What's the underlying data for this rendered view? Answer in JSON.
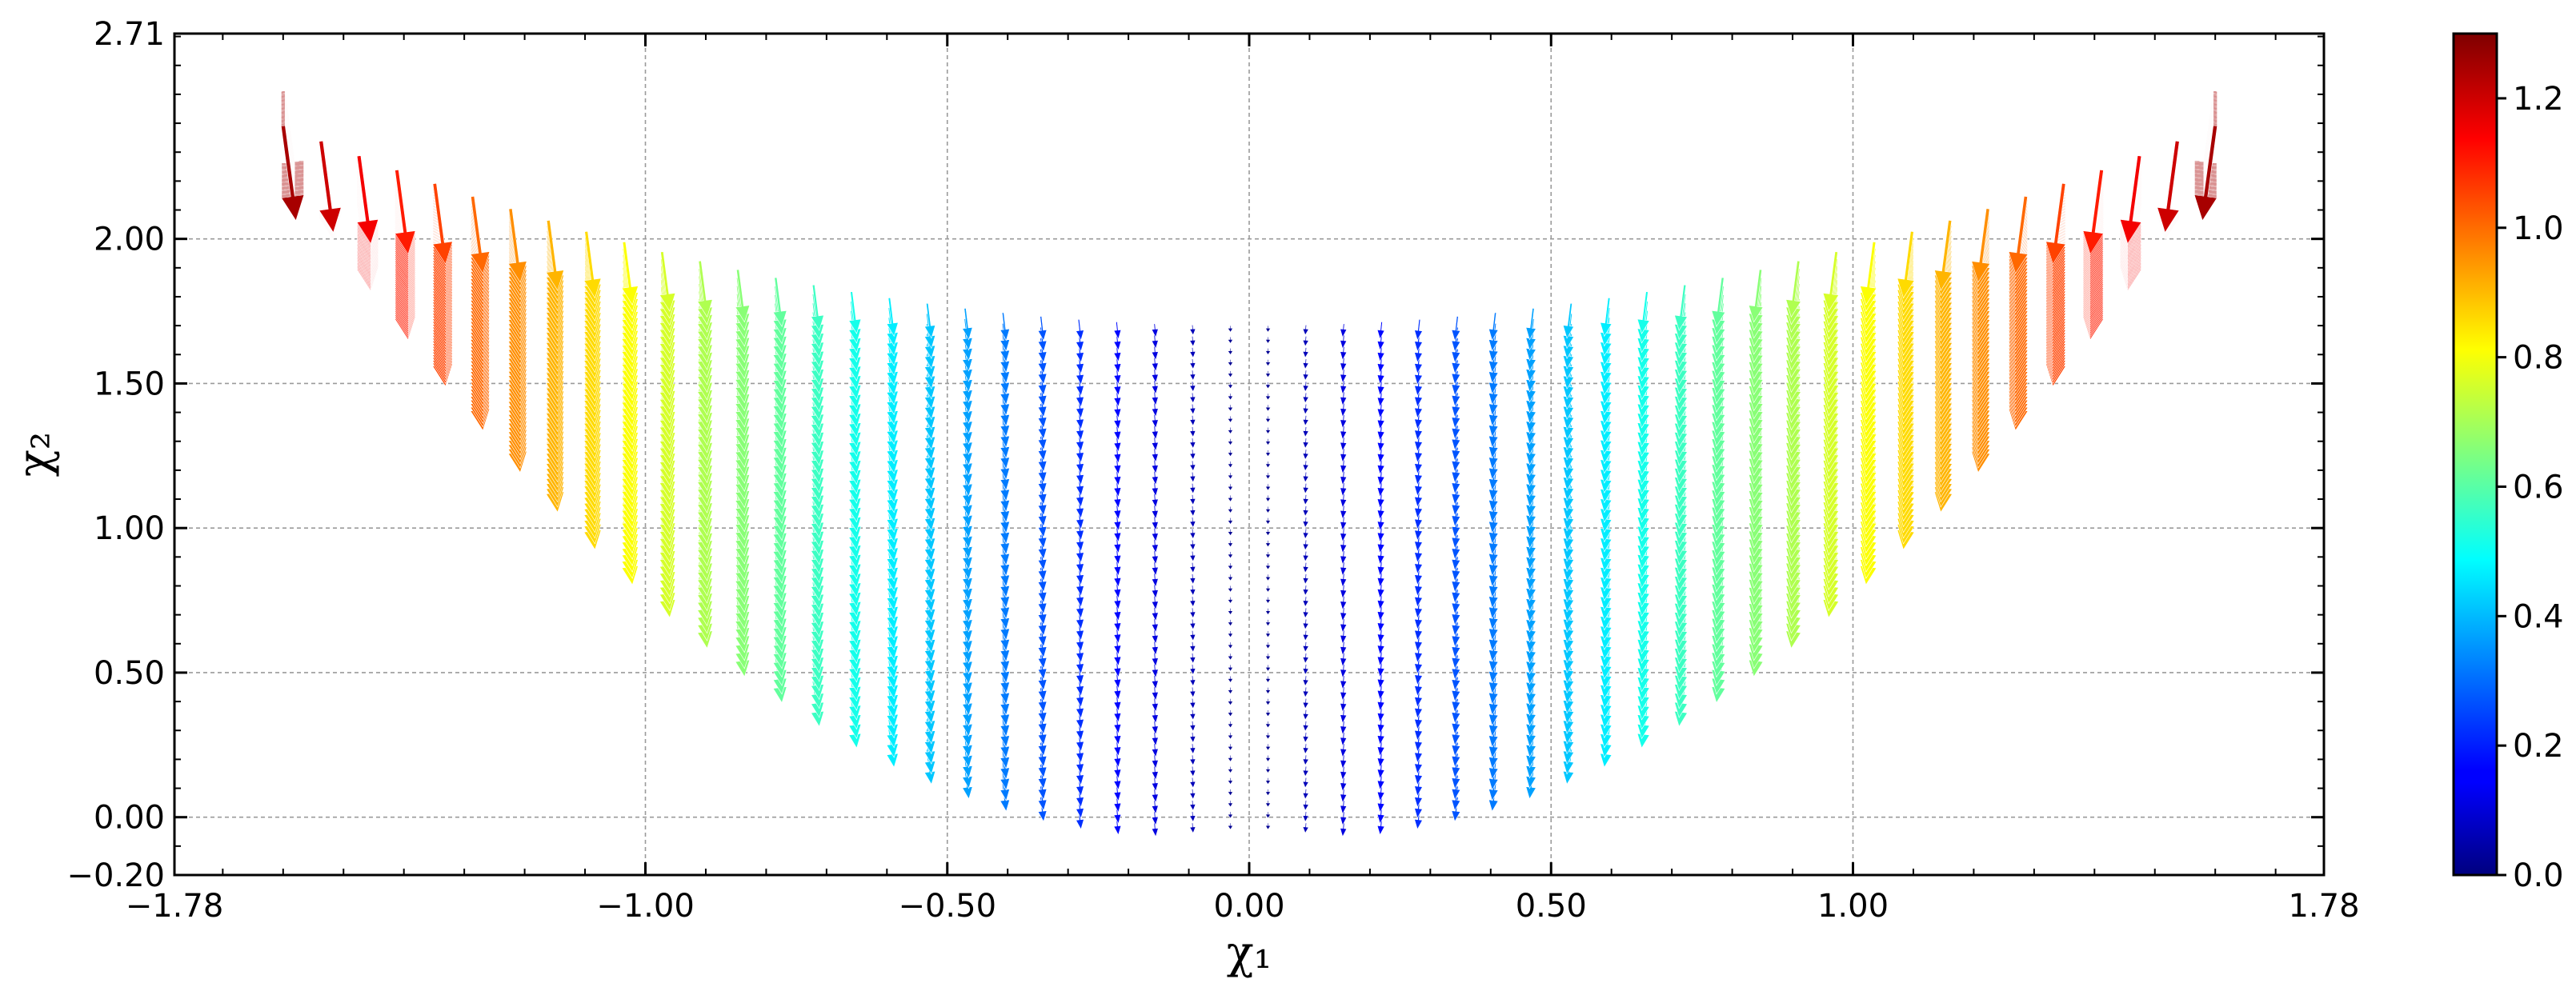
{
  "chart_data": {
    "type": "quiver",
    "xlabel": "χ₁",
    "ylabel": "χ₂",
    "xlim": [
      -1.78,
      1.78
    ],
    "ylim": [
      -0.2,
      2.71
    ],
    "x_tick_labels": [
      "−1.78",
      "−1.00",
      "−0.50",
      "0.00",
      "0.50",
      "1.00",
      "1.78"
    ],
    "y_tick_labels": [
      "−0.20",
      "0.00",
      "0.50",
      "1.00",
      "1.50",
      "2.00",
      "2.71"
    ],
    "grid": true,
    "colormap": "jet",
    "colorbar": {
      "range": [
        0.0,
        1.3
      ],
      "tick_labels": [
        "0.0",
        "0.2",
        "0.4",
        "0.6",
        "0.8",
        "1.0",
        "1.2"
      ]
    },
    "field": {
      "columns": 52,
      "x_range": [
        -1.6,
        1.6
      ],
      "y_lower_bound": "x^2 - 0.05",
      "y_upper_bound": "0.27*x^2 + 1.7",
      "rows_per_column": 45,
      "direction": "downward (negative χ₂), slightly sheared with χ₁",
      "magnitude": "proportional to |χ₁|, max ≈ 1.3 at |χ₁| = 1.6"
    }
  }
}
